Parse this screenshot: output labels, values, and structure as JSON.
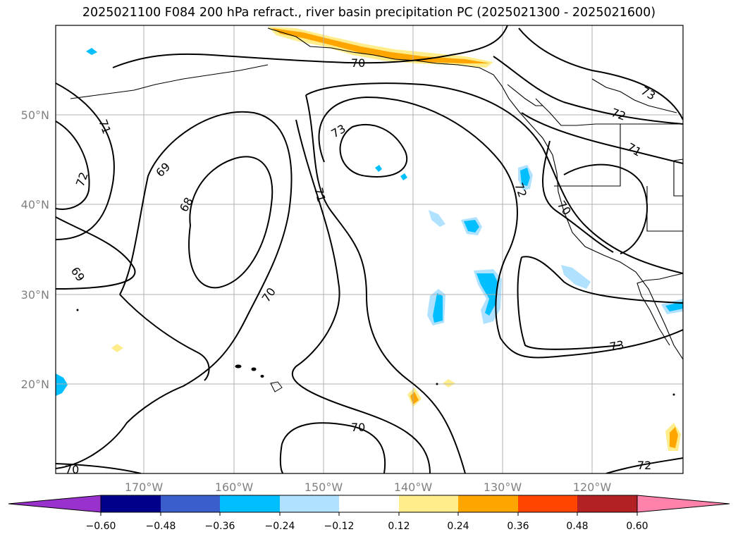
{
  "title": "2025021100 F084 200 hPa refract., river basin precipitation PC (2025021300 - 2025021600)",
  "map": {
    "lat_labels": [
      "50°N",
      "40°N",
      "30°N",
      "20°N"
    ],
    "lon_labels": [
      "170°W",
      "160°W",
      "150°W",
      "140°W",
      "130°W",
      "120°W"
    ],
    "tick_label_color": "#808080"
  },
  "contour_labels": [
    "70",
    "73",
    "72",
    "73",
    "71",
    "71",
    "72",
    "69",
    "68",
    "71",
    "72",
    "70",
    "69",
    "70",
    "73",
    "70",
    "70",
    "72"
  ],
  "colorbar": {
    "ticks": [
      "−0.60",
      "−0.48",
      "−0.36",
      "−0.24",
      "−0.12",
      "0.12",
      "0.24",
      "0.36",
      "0.48",
      "0.60"
    ],
    "colors": [
      "#9932cc",
      "#00008b",
      "#3a5fcd",
      "#00bfff",
      "#b0e2ff",
      "#ffffff",
      "#ffec8b",
      "#ffa500",
      "#ff4500",
      "#b22222",
      "#ff82ab"
    ]
  }
}
